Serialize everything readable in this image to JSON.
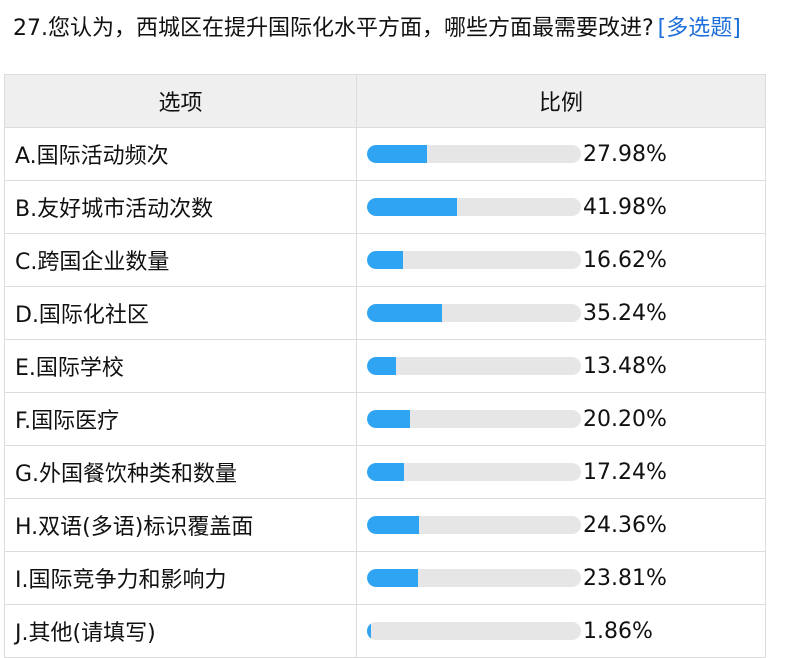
{
  "question": {
    "title": "27.您认为，西城区在提升国际化水平方面，哪些方面最需要改进?",
    "type_tag": "[多选题]"
  },
  "table": {
    "col_option": "选项",
    "col_ratio": "比例"
  },
  "colors": {
    "bar_fill": "#2ea4f2",
    "bar_track": "#e6e6e6",
    "tag": "#1e6fd9"
  },
  "chart_data": {
    "type": "bar",
    "orientation": "horizontal",
    "categories": [
      "A.国际活动频次",
      "B.友好城市活动次数",
      "C.跨国企业数量",
      "D.国际化社区",
      "E.国际学校",
      "F.国际医疗",
      "G.外国餐饮种类和数量",
      "H.双语(多语)标识覆盖面",
      "I.国际竞争力和影响力",
      "J.其他(请填写)"
    ],
    "values": [
      27.98,
      41.98,
      16.62,
      35.24,
      13.48,
      20.2,
      17.24,
      24.36,
      23.81,
      1.86
    ],
    "labels": [
      "27.98%",
      "41.98%",
      "16.62%",
      "35.24%",
      "13.48%",
      "20.20%",
      "17.24%",
      "24.36%",
      "23.81%",
      "1.86%"
    ],
    "xlim": [
      0,
      100
    ]
  }
}
